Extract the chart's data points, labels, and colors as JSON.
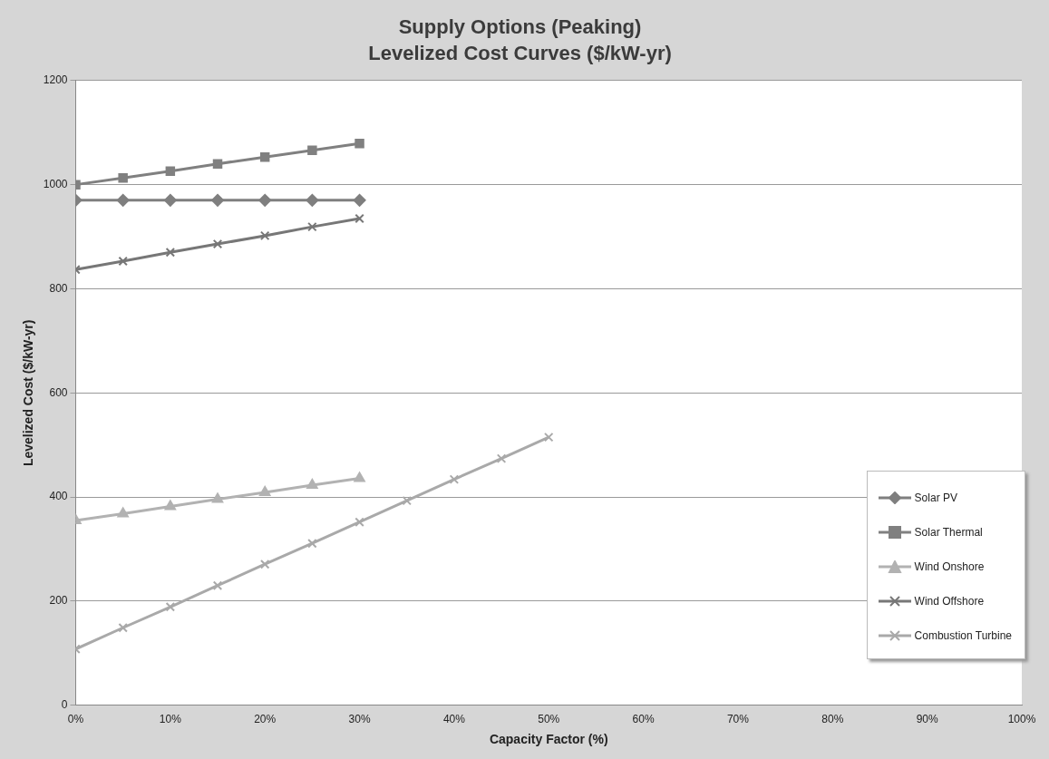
{
  "chart_data": {
    "type": "line",
    "title": "Supply Options (Peaking)",
    "subtitle": "Levelized Cost Curves ($/kW-yr)",
    "xlabel": "Capacity Factor (%)",
    "ylabel": "Levelized Cost ($/kW-yr)",
    "xlim": [
      0,
      100
    ],
    "xticks": [
      {
        "value": 0,
        "label": "0%"
      },
      {
        "value": 10,
        "label": "10%"
      },
      {
        "value": 20,
        "label": "20%"
      },
      {
        "value": 30,
        "label": "30%"
      },
      {
        "value": 40,
        "label": "40%"
      },
      {
        "value": 50,
        "label": "50%"
      },
      {
        "value": 60,
        "label": "60%"
      },
      {
        "value": 70,
        "label": "70%"
      },
      {
        "value": 80,
        "label": "80%"
      },
      {
        "value": 90,
        "label": "90%"
      },
      {
        "value": 100,
        "label": "100%"
      }
    ],
    "ylim": [
      0,
      1200
    ],
    "yticks": [
      0,
      200,
      400,
      600,
      800,
      1000,
      1200
    ],
    "grid": "y",
    "legend": "bottom right",
    "line_style": "solid",
    "series": [
      {
        "name": "Solar PV",
        "color": "#7f7f7f",
        "marker": "diamond",
        "x": [
          0,
          5,
          10,
          15,
          20,
          25,
          30
        ],
        "values": [
          970,
          970,
          970,
          970,
          970,
          970,
          970
        ]
      },
      {
        "name": "Solar Thermal",
        "color": "#808080",
        "marker": "square",
        "x": [
          0,
          5,
          10,
          15,
          20,
          25,
          30
        ],
        "values": [
          1000,
          1013,
          1026,
          1040,
          1053,
          1066,
          1079
        ]
      },
      {
        "name": "Wind Onshore",
        "color": "#b2b2b2",
        "marker": "triangle",
        "x": [
          0,
          5,
          10,
          15,
          20,
          25,
          30
        ],
        "values": [
          355,
          368,
          382,
          396,
          409,
          423,
          436
        ]
      },
      {
        "name": "Wind Offshore",
        "color": "#777777",
        "marker": "cross",
        "x": [
          0,
          5,
          10,
          15,
          20,
          25,
          30
        ],
        "values": [
          837,
          853,
          870,
          886,
          902,
          919,
          935
        ]
      },
      {
        "name": "Combustion Turbine",
        "color": "#a9a9a9",
        "marker": "cross",
        "x": [
          0,
          5,
          10,
          15,
          20,
          25,
          30,
          35,
          40,
          45,
          50
        ],
        "values": [
          108,
          149,
          189,
          230,
          271,
          311,
          352,
          393,
          434,
          474,
          515
        ]
      }
    ]
  }
}
